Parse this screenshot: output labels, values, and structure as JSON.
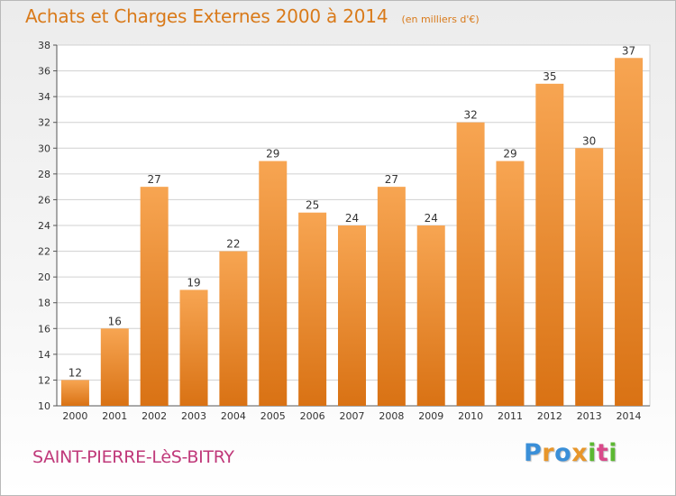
{
  "header": {
    "title": "Achats et Charges Externes 2000 à 2014",
    "unit": "(en milliers d'€)"
  },
  "footer": {
    "town": "SAINT-PIERRE-LèS-BITRY",
    "logo_letters": [
      {
        "char": "P",
        "color": "#3a8fd8"
      },
      {
        "char": "r",
        "color": "#e8962a"
      },
      {
        "char": "o",
        "color": "#3a8fd8"
      },
      {
        "char": "x",
        "color": "#e8962a"
      },
      {
        "char": "i",
        "color": "#5cb832"
      },
      {
        "char": "t",
        "color": "#d94a8a"
      },
      {
        "char": "i",
        "color": "#5cb832"
      }
    ]
  },
  "colors": {
    "bar_top": "#f7a552",
    "bar_bottom": "#d97214",
    "grid": "#d0d0d0",
    "axis": "#555555"
  },
  "chart_data": {
    "type": "bar",
    "title": "Achats et Charges Externes 2000 à 2014",
    "subtitle": "(en milliers d'€)",
    "xlabel": "",
    "ylabel": "",
    "ylim": [
      10,
      38
    ],
    "ytick_step": 2,
    "grid": true,
    "categories": [
      "2000",
      "2001",
      "2002",
      "2003",
      "2004",
      "2005",
      "2006",
      "2007",
      "2008",
      "2009",
      "2010",
      "2011",
      "2012",
      "2013",
      "2014"
    ],
    "values": [
      12,
      16,
      27,
      19,
      22,
      29,
      25,
      24,
      27,
      24,
      32,
      29,
      35,
      30,
      37
    ]
  }
}
